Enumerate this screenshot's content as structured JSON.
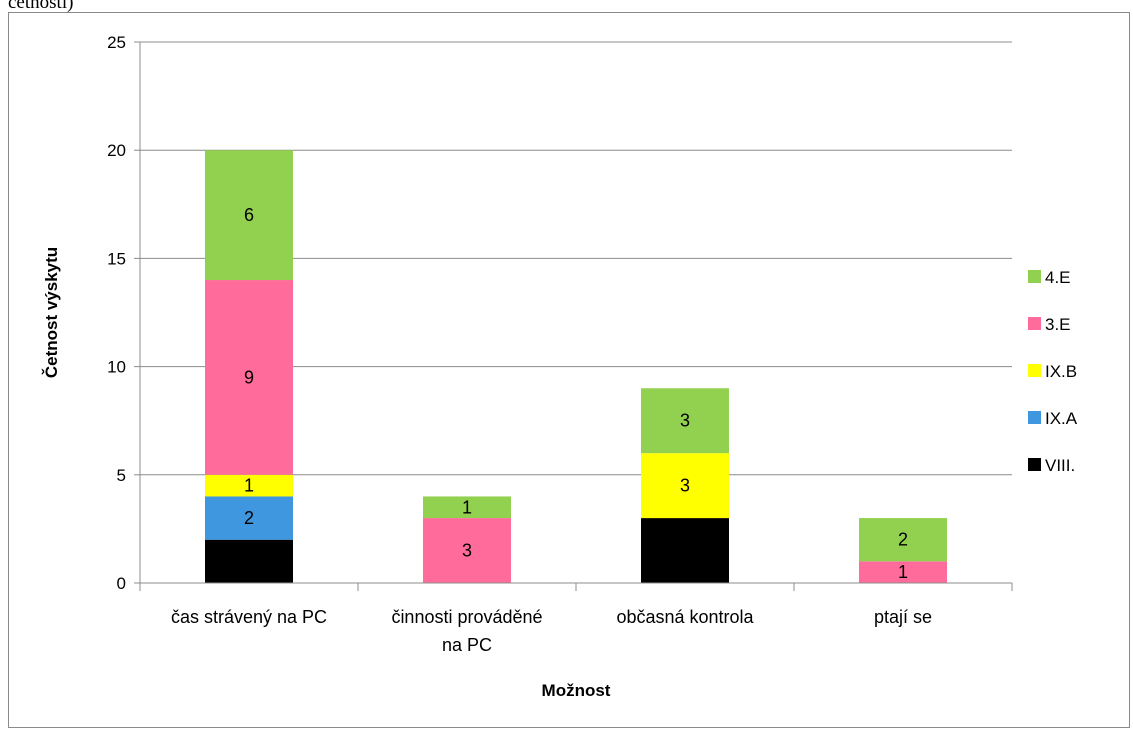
{
  "top_caption": "četnosti)",
  "chart_data": {
    "type": "bar",
    "stacked": true,
    "categories": [
      [
        "čas strávený na PC"
      ],
      [
        "činnosti prováděné",
        "na PC"
      ],
      [
        "občasná kontrola"
      ],
      [
        "ptají se"
      ]
    ],
    "series": [
      {
        "name": "VIII.",
        "color": "#000000",
        "values": [
          2,
          0,
          3,
          0
        ]
      },
      {
        "name": "IX.A",
        "color": "#3f97e0",
        "values": [
          2,
          0,
          0,
          0
        ]
      },
      {
        "name": "IX.B",
        "color": "#ffff00",
        "values": [
          1,
          0,
          3,
          0
        ]
      },
      {
        "name": "3.E",
        "color": "#ff6b9a",
        "values": [
          9,
          3,
          0,
          1
        ]
      },
      {
        "name": "4.E",
        "color": "#92d050",
        "values": [
          6,
          1,
          3,
          2
        ]
      }
    ],
    "xlabel": "Možnost",
    "ylabel": "Četnost výskytu",
    "ylim": [
      0,
      25
    ],
    "yticks": [
      0,
      5,
      10,
      15,
      20,
      25
    ],
    "grid": true,
    "legend_position": "right",
    "legend_order": [
      "4.E",
      "3.E",
      "IX.B",
      "IX.A",
      "VIII."
    ],
    "data_label_color": "#000000"
  }
}
